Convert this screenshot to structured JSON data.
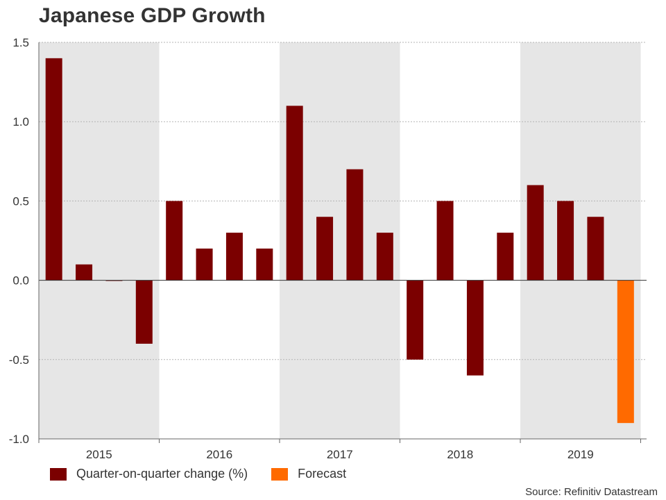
{
  "title": "Japanese GDP Growth",
  "source": "Source: Refinitiv Datastream",
  "chart_data": {
    "type": "bar",
    "title": "Japanese GDP Growth",
    "xlabel": "",
    "ylabel": "",
    "ylim": [
      -1.0,
      1.5
    ],
    "yticks": [
      1.5,
      1.0,
      0.5,
      0.0,
      -0.5,
      -1.0
    ],
    "ytick_labels": [
      "1.5",
      "1.0",
      "0.5",
      "0.0",
      "-0.5",
      "-1.0"
    ],
    "grid": true,
    "year_bands": [
      {
        "label": "2015",
        "shaded": true
      },
      {
        "label": "2016",
        "shaded": false
      },
      {
        "label": "2017",
        "shaded": true
      },
      {
        "label": "2018",
        "shaded": false
      },
      {
        "label": "2019",
        "shaded": true
      }
    ],
    "categories": [
      "2015 Q1",
      "2015 Q2",
      "2015 Q3",
      "2015 Q4",
      "2016 Q1",
      "2016 Q2",
      "2016 Q3",
      "2016 Q4",
      "2017 Q1",
      "2017 Q2",
      "2017 Q3",
      "2017 Q4",
      "2018 Q1",
      "2018 Q2",
      "2018 Q3",
      "2018 Q4",
      "2019 Q1",
      "2019 Q2",
      "2019 Q3",
      "2019 Q4"
    ],
    "series": [
      {
        "name": "Quarter-on-quarter change (%)",
        "color": "#7b0000",
        "values": [
          1.4,
          0.1,
          0.0,
          -0.4,
          0.5,
          0.2,
          0.3,
          0.2,
          1.1,
          0.4,
          0.7,
          0.3,
          -0.5,
          0.5,
          -0.6,
          0.3,
          0.6,
          0.5,
          0.4,
          null
        ]
      },
      {
        "name": "Forecast",
        "color": "#ff6a00",
        "values": [
          null,
          null,
          null,
          null,
          null,
          null,
          null,
          null,
          null,
          null,
          null,
          null,
          null,
          null,
          null,
          null,
          null,
          null,
          null,
          -0.9
        ]
      }
    ],
    "legend_position": "bottom-left"
  }
}
